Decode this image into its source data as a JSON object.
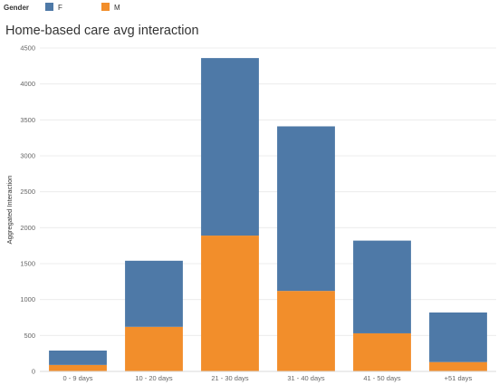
{
  "legend": {
    "title": "Gender",
    "items": [
      {
        "label": "F",
        "color": "#4e79a7"
      },
      {
        "label": "M",
        "color": "#f28e2b"
      }
    ]
  },
  "chart_data": {
    "type": "bar",
    "stacked": true,
    "title": "Home-based care avg interaction",
    "xlabel": "",
    "ylabel": "Aggregated Interaction",
    "categories": [
      "0 - 9 days",
      "10 - 20 days",
      "21 - 30 days",
      "31 - 40 days",
      "41 - 50 days",
      "+51 days"
    ],
    "series": [
      {
        "name": "M",
        "color": "#f28e2b",
        "values": [
          90,
          620,
          1890,
          1120,
          530,
          130
        ]
      },
      {
        "name": "F",
        "color": "#4e79a7",
        "values": [
          200,
          920,
          2470,
          2290,
          1290,
          690
        ]
      }
    ],
    "ylim": [
      0,
      4500
    ],
    "yticks": [
      0,
      500,
      1000,
      1500,
      2000,
      2500,
      3000,
      3500,
      4000,
      4500
    ],
    "grid": true,
    "legend_position": "top-left"
  }
}
